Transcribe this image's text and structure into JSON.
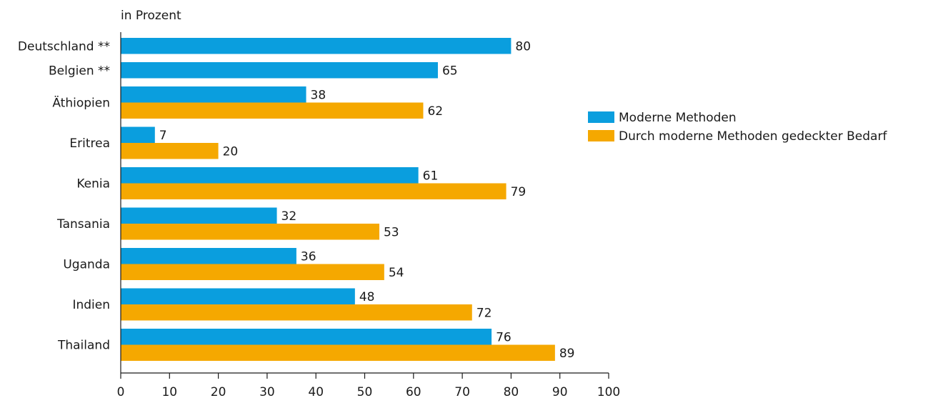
{
  "chart_data": {
    "type": "bar",
    "orientation": "horizontal",
    "xlabel": "in Prozent",
    "categories": [
      "Deutschland **",
      "Belgien **",
      "Äthiopien",
      "Eritrea",
      "Kenia",
      "Tansania",
      "Uganda",
      "Indien",
      "Thailand"
    ],
    "series": [
      {
        "name": "Moderne Methoden",
        "color": "#0a9ede",
        "values": [
          80,
          65,
          38,
          7,
          61,
          32,
          36,
          48,
          76
        ]
      },
      {
        "name": "Durch moderne Methoden gedeckter Bedarf",
        "color": "#f5a800",
        "values": [
          null,
          null,
          62,
          20,
          79,
          53,
          54,
          72,
          89
        ]
      }
    ],
    "xlim": [
      0,
      100
    ],
    "xticks": [
      0,
      10,
      20,
      30,
      40,
      50,
      60,
      70,
      80,
      90,
      100
    ],
    "legend": "right"
  }
}
